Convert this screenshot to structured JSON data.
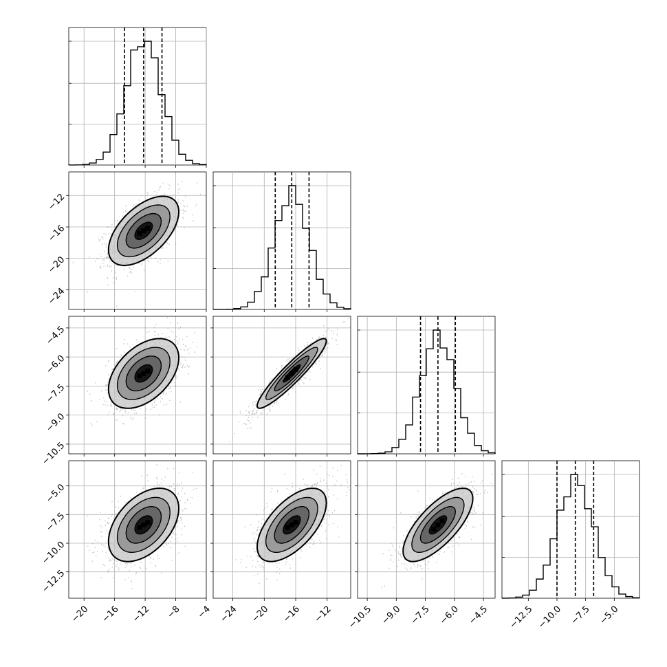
{
  "chart_data": {
    "type": "corner",
    "grid": true,
    "parameters": [
      {
        "range": [
          -22,
          -4
        ],
        "xticks": [
          -20,
          -16,
          -12,
          -8,
          -4
        ],
        "xtick_labels": [
          "−20",
          "−16",
          "−12",
          "−8",
          "−4"
        ],
        "yticks": [],
        "ytick_labels": [],
        "quantiles": [
          -14.7,
          -12.2,
          -9.8
        ],
        "mean": -12.2,
        "sd": 2.3
      },
      {
        "range": [
          -26.5,
          -9
        ],
        "xticks": [
          -24,
          -20,
          -16,
          -12
        ],
        "xtick_labels": [
          "−24",
          "−20",
          "−16",
          "−12"
        ],
        "yticks": [
          -12,
          -16,
          -20,
          -24
        ],
        "ytick_labels": [
          "−12",
          "−16",
          "−20",
          "−24"
        ],
        "quantiles": [
          -18.6,
          -16.5,
          -14.3
        ],
        "mean": -16.5,
        "sd": 2.2
      },
      {
        "range": [
          -11,
          -3.9
        ],
        "xticks": [
          -10.5,
          -9.0,
          -7.5,
          -6.0,
          -4.5
        ],
        "xtick_labels": [
          "−10.5",
          "−9.0",
          "−7.5",
          "−6.0",
          "−4.5"
        ],
        "yticks": [
          -4.5,
          -6.0,
          -7.5,
          -9.0,
          -10.5
        ],
        "ytick_labels": [
          "−4.5",
          "−6.0",
          "−7.5",
          "−9.0",
          "−10.5"
        ],
        "quantiles": [
          -7.75,
          -6.85,
          -5.95
        ],
        "mean": -6.85,
        "sd": 0.9
      },
      {
        "range": [
          -14.8,
          -2.8
        ],
        "xticks": [
          -12.5,
          -10.0,
          -7.5,
          -5.0
        ],
        "xtick_labels": [
          "−12.5",
          "−10.0",
          "−7.5",
          "−5.0"
        ],
        "yticks": [
          -5.0,
          -7.5,
          -10.0,
          -12.5
        ],
        "ytick_labels": [
          "−5.0",
          "−7.5",
          "−10.0",
          "−12.5"
        ],
        "quantiles": [
          -10.0,
          -8.4,
          -6.8
        ],
        "mean": -8.4,
        "sd": 1.6
      }
    ],
    "correlations": [
      {
        "pair": [
          1,
          0
        ],
        "rho": 0.55
      },
      {
        "pair": [
          2,
          0
        ],
        "rho": 0.45
      },
      {
        "pair": [
          2,
          1
        ],
        "rho": 0.93
      },
      {
        "pair": [
          3,
          0
        ],
        "rho": 0.45
      },
      {
        "pair": [
          3,
          1
        ],
        "rho": 0.6
      },
      {
        "pair": [
          3,
          2
        ],
        "rho": 0.72
      }
    ],
    "contour_levels": [
      "0.5 sigma",
      "1 sigma",
      "1.5 sigma",
      "2 sigma"
    ]
  }
}
